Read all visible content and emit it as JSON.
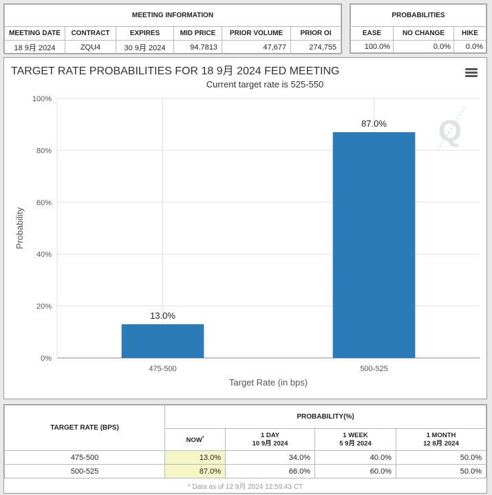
{
  "meeting": {
    "title": "MEETING INFORMATION",
    "columns": [
      "MEETING DATE",
      "CONTRACT",
      "EXPIRES",
      "MID PRICE",
      "PRIOR VOLUME",
      "PRIOR OI"
    ],
    "values": [
      "18 9月 2024",
      "ZQU4",
      "30 9月 2024",
      "94.7813",
      "47,677",
      "274,755"
    ]
  },
  "probabilities": {
    "title": "PROBABILITIES",
    "columns": [
      "EASE",
      "NO CHANGE",
      "HIKE"
    ],
    "values": [
      "100.0%",
      "0.0%",
      "0.0%"
    ]
  },
  "chart_data": {
    "type": "bar",
    "title": "TARGET RATE PROBABILITIES FOR 18 9月 2024 FED MEETING",
    "subtitle": "Current target rate is 525-550",
    "xlabel": "Target Rate (in bps)",
    "ylabel": "Probability",
    "categories": [
      "475-500",
      "500-525"
    ],
    "values": [
      13.0,
      87.0
    ],
    "data_labels": [
      "13.0%",
      "87.0%"
    ],
    "ylim": [
      0,
      100
    ],
    "yticks": [
      "0%",
      "20%",
      "40%",
      "60%",
      "80%",
      "100%"
    ],
    "grid": true,
    "bar_color": "#2b7bb9"
  },
  "target_table": {
    "header_rate": "TARGET RATE (BPS)",
    "header_prob": "PROBABILITY(%)",
    "subheaders": [
      {
        "line1": "NOW",
        "line2": ""
      },
      {
        "line1": "1 DAY",
        "line2": "10 9月 2024"
      },
      {
        "line1": "1 WEEK",
        "line2": "5 9月 2024"
      },
      {
        "line1": "1 MONTH",
        "line2": "12 8月 2024"
      }
    ],
    "now_marker": "*",
    "rows": [
      {
        "rate": "475-500",
        "now": "13.0%",
        "day": "34.0%",
        "week": "40.0%",
        "month": "50.0%"
      },
      {
        "rate": "500-525",
        "now": "87.0%",
        "day": "66.0%",
        "week": "60.0%",
        "month": "50.0%"
      }
    ],
    "footnote": "* Data as of 12 9月 2024 12:59:43 CT"
  }
}
